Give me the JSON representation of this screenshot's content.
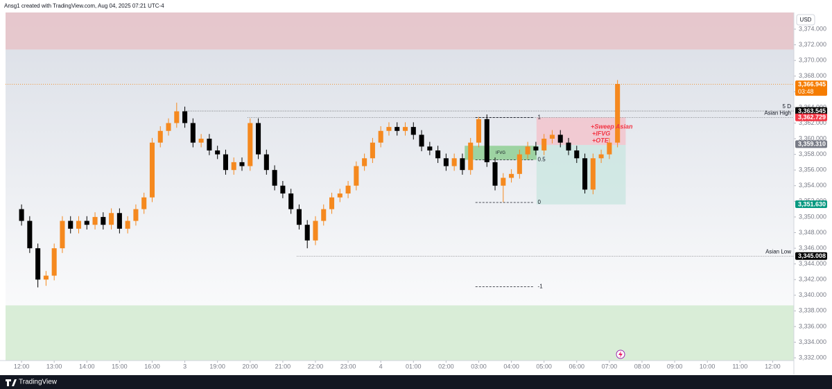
{
  "chart_data": {
    "type": "candlestick",
    "title": "Ansg1 created with TradingView.com, Aug 04, 2025 07:21 UTC-4",
    "currency": "USD",
    "brand": "TradingView",
    "up_color": "#f5891f",
    "down_color": "#000000",
    "xlim": [
      -0.49,
      23.65
    ],
    "ylim": [
      3331.65,
      3376.13
    ],
    "xticks": [
      {
        "value": 0,
        "label": "12:00"
      },
      {
        "value": 1,
        "label": "13:00"
      },
      {
        "value": 2,
        "label": "14:00"
      },
      {
        "value": 3,
        "label": "15:00"
      },
      {
        "value": 4,
        "label": "16:00"
      },
      {
        "value": 5,
        "label": "3"
      },
      {
        "value": 6,
        "label": "19:00"
      },
      {
        "value": 7,
        "label": "20:00"
      },
      {
        "value": 8,
        "label": "21:00"
      },
      {
        "value": 9,
        "label": "22:00"
      },
      {
        "value": 10,
        "label": "23:00"
      },
      {
        "value": 11,
        "label": "4"
      },
      {
        "value": 12,
        "label": "01:00"
      },
      {
        "value": 13,
        "label": "02:00"
      },
      {
        "value": 14,
        "label": "03:00"
      },
      {
        "value": 15,
        "label": "04:00"
      },
      {
        "value": 16,
        "label": "05:00"
      },
      {
        "value": 17,
        "label": "06:00"
      },
      {
        "value": 18,
        "label": "07:00"
      },
      {
        "value": 19,
        "label": "08:00"
      },
      {
        "value": 20,
        "label": "09:00"
      },
      {
        "value": 21,
        "label": "10:00"
      },
      {
        "value": 22,
        "label": "11:00"
      },
      {
        "value": 23,
        "label": "12:00"
      }
    ],
    "yticks": [
      {
        "value": 3332,
        "label": "3,332.000"
      },
      {
        "value": 3334,
        "label": "3,334.000"
      },
      {
        "value": 3336,
        "label": "3,336.000"
      },
      {
        "value": 3338,
        "label": "3,338.000"
      },
      {
        "value": 3340,
        "label": "3,340.000"
      },
      {
        "value": 3342,
        "label": "3,342.000"
      },
      {
        "value": 3344,
        "label": "3,344.000"
      },
      {
        "value": 3346,
        "label": "3,346.000"
      },
      {
        "value": 3348,
        "label": "3,348.000"
      },
      {
        "value": 3350,
        "label": "3,350.000"
      },
      {
        "value": 3352,
        "label": "3,352.000"
      },
      {
        "value": 3354,
        "label": "3,354.000"
      },
      {
        "value": 3356,
        "label": "3,356.000"
      },
      {
        "value": 3358,
        "label": "3,358.000"
      },
      {
        "value": 3360,
        "label": "3,360.000"
      },
      {
        "value": 3362,
        "label": "3,362.000"
      },
      {
        "value": 3364,
        "label": "3,364.000"
      },
      {
        "value": 3366,
        "label": "3,366.000"
      },
      {
        "value": 3368,
        "label": "3,368.000"
      },
      {
        "value": 3370,
        "label": "3,370.000"
      },
      {
        "value": 3372,
        "label": "3,372.000"
      },
      {
        "value": 3374,
        "label": "3,374.000"
      }
    ],
    "x": [
      0,
      0.25,
      0.5,
      0.75,
      1,
      1.25,
      1.5,
      1.75,
      2,
      2.25,
      2.5,
      2.75,
      3,
      3.25,
      3.5,
      3.75,
      4,
      4.25,
      4.5,
      4.75,
      5,
      5.25,
      5.5,
      5.75,
      6,
      6.25,
      6.5,
      6.75,
      7,
      7.25,
      7.5,
      7.75,
      8,
      8.25,
      8.5,
      8.75,
      9,
      9.25,
      9.5,
      9.75,
      10,
      10.25,
      10.5,
      10.75,
      11,
      11.25,
      11.5,
      11.75,
      12,
      12.25,
      12.5,
      12.75,
      13,
      13.25,
      13.5,
      13.75,
      14,
      14.25,
      14.5,
      14.75,
      15,
      15.25,
      15.5,
      15.75,
      16,
      16.25,
      16.5,
      16.75,
      17,
      17.25,
      17.5,
      17.75,
      18,
      18.25
    ],
    "open": [
      3351,
      3349.5,
      3346,
      3342,
      3342.5,
      3346,
      3349.5,
      3348.5,
      3349.5,
      3349,
      3350,
      3349,
      3350.5,
      3348.5,
      3349.5,
      3351,
      3352.5,
      3359.5,
      3361,
      3362,
      3363.5,
      3362,
      3359.5,
      3360,
      3358.5,
      3358,
      3356,
      3357,
      3356.5,
      3362,
      3358,
      3356,
      3354,
      3353,
      3351,
      3349,
      3347,
      3349.5,
      3351,
      3352.5,
      3353,
      3354,
      3356.5,
      3357.5,
      3359.5,
      3361,
      3361.5,
      3361,
      3361.5,
      3360.5,
      3359,
      3358.5,
      3357.5,
      3356.5,
      3357.5,
      3356,
      3359.5,
      3362.5,
      3357,
      3354,
      3355,
      3355.5,
      3358,
      3359,
      3358.5,
      3360,
      3360.5,
      3359.5,
      3358.5,
      3357.5,
      3353.5,
      3357.5,
      3358,
      3359.5
    ],
    "high": [
      3351.6,
      3350.1,
      3346.6,
      3343.1,
      3346.6,
      3350.1,
      3350.1,
      3350.1,
      3350.1,
      3350.6,
      3350.6,
      3351.1,
      3351.1,
      3350.1,
      3351.6,
      3353.1,
      3360.1,
      3361.6,
      3362.6,
      3364.6,
      3364.1,
      3362.6,
      3360.6,
      3360.6,
      3359.1,
      3358.6,
      3357.6,
      3357.6,
      3362.6,
      3362.6,
      3358.6,
      3356.6,
      3354.6,
      3353.6,
      3351.6,
      3349.6,
      3350.1,
      3351.6,
      3353.1,
      3353.6,
      3354.6,
      3357.1,
      3358.1,
      3360.1,
      3361.6,
      3362.1,
      3362.1,
      3362.1,
      3362.1,
      3361.1,
      3359.6,
      3359.1,
      3358.1,
      3358.1,
      3358.1,
      3360.1,
      3362.8,
      3363.1,
      3357.6,
      3355.6,
      3356.1,
      3358.6,
      3359.6,
      3359.6,
      3360.6,
      3361.1,
      3361.1,
      3360.1,
      3359.1,
      3358.1,
      3358.1,
      3358.6,
      3360.1,
      3367.5
    ],
    "low": [
      3348.9,
      3345.4,
      3341,
      3341.2,
      3341.9,
      3345.4,
      3347.9,
      3347.9,
      3348.4,
      3348.4,
      3348.4,
      3348.4,
      3347.9,
      3347.9,
      3348.9,
      3350.4,
      3351.9,
      3358.9,
      3360.4,
      3361.4,
      3361.4,
      3358.9,
      3358.9,
      3357.9,
      3357.4,
      3355.4,
      3355.4,
      3355.9,
      3355.9,
      3357.4,
      3355.4,
      3353.4,
      3352.4,
      3350.4,
      3348.4,
      3346,
      3346.4,
      3348.9,
      3350.4,
      3351.9,
      3352.4,
      3353.4,
      3355.9,
      3356.9,
      3358.9,
      3360.4,
      3360.4,
      3360.4,
      3359.9,
      3358.4,
      3357.9,
      3356.9,
      3355.9,
      3355.9,
      3355.4,
      3355.4,
      3358.9,
      3356.4,
      3353.4,
      3351.9,
      3354.4,
      3354.9,
      3357.4,
      3357.9,
      3357.9,
      3359.4,
      3358.9,
      3357.9,
      3356.9,
      3353,
      3352.9,
      3356.9,
      3357.4,
      3358.9
    ],
    "close": [
      3349.5,
      3346,
      3342,
      3342.5,
      3346,
      3349.5,
      3348.5,
      3349.5,
      3349,
      3350,
      3349,
      3350.5,
      3348.5,
      3349.5,
      3351,
      3352.5,
      3359.5,
      3361,
      3362,
      3363.5,
      3362,
      3359.5,
      3360,
      3358.5,
      3358,
      3356,
      3357,
      3356.5,
      3362,
      3358,
      3356,
      3354,
      3353,
      3351,
      3349,
      3347,
      3349.5,
      3351,
      3352.5,
      3353,
      3354,
      3356.5,
      3357.5,
      3359.5,
      3361,
      3361.5,
      3361,
      3361.5,
      3360.5,
      3359,
      3358.5,
      3357.5,
      3356.5,
      3357.5,
      3356,
      3359.5,
      3362.5,
      3357,
      3354,
      3355,
      3355.5,
      3358,
      3359,
      3358.5,
      3360,
      3360.5,
      3359.5,
      3358.5,
      3357.5,
      3353.5,
      3357.5,
      3358,
      3359.5,
      3367
    ],
    "zones": [
      {
        "y": [
          3371.4,
          3376.13
        ],
        "color": "#e8c3c8"
      },
      {
        "y": [
          3331.65,
          3338.7
        ],
        "color": "#d2ead0"
      },
      {
        "x": [
          15.77,
          18.5
        ],
        "y": [
          3359.2,
          3362.7
        ],
        "color": "#f2c4cc"
      },
      {
        "x": [
          15.77,
          18.5
        ],
        "y": [
          3351.6,
          3359.2
        ],
        "color": "#cde6e2"
      },
      {
        "x": [
          13.57,
          15.77
        ],
        "y": [
          3357.3,
          3359.1
        ],
        "color": "#8fcf94",
        "label": "IFVG"
      }
    ],
    "lines": [
      {
        "value": 3363.545,
        "x_start": 4.99,
        "label": "5 D"
      },
      {
        "value": 3362.729,
        "x_start": 6.92,
        "label": "Asian High"
      },
      {
        "value": 3345.008,
        "x_start": 8.43,
        "label": "Asian Low"
      }
    ],
    "fib_x": [
      13.9,
      15.7
    ],
    "fib_levels": [
      {
        "value": 3362.7,
        "label": "1"
      },
      {
        "value": 3357.3,
        "label": "0.5"
      },
      {
        "value": 3351.85,
        "label": "0"
      },
      {
        "value": 3341.1,
        "label": "-1"
      }
    ],
    "note_lines": [
      "+Sweep Asian",
      "+IFVG",
      "+OTE"
    ],
    "note_color": "#f23645",
    "price_tags": [
      {
        "value": 3366.945,
        "label": "3,366.945",
        "color": "#f57c00",
        "line": true
      },
      {
        "value": 3363.545,
        "label": "3,363.545",
        "color": "#000000"
      },
      {
        "value": 3362.729,
        "label": "3,362.729",
        "color": "#f23645"
      },
      {
        "value": 3359.31,
        "label": "3,359.310",
        "color": "#787b86"
      },
      {
        "value": 3351.63,
        "label": "3,351.630",
        "color": "#089981"
      },
      {
        "value": 3345.008,
        "label": "3,345.008",
        "color": "#000000"
      }
    ],
    "countdown": "03:48"
  }
}
